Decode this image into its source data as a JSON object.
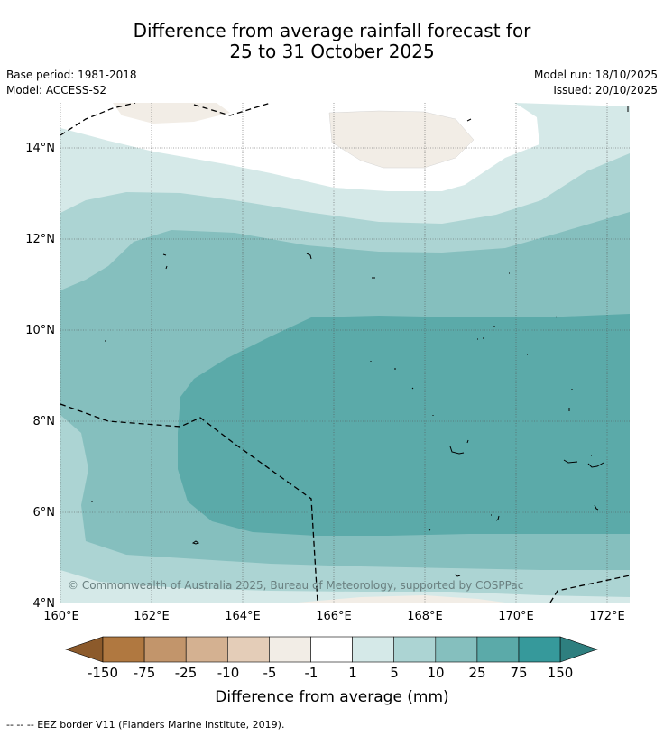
{
  "title": {
    "line1": "Difference from average rainfall forecast for",
    "line2": "25 to 31 October 2025"
  },
  "meta": {
    "base_period": "Base period: 1981-2018",
    "model": "Model: ACCESS-S2",
    "model_run": "Model run: 18/10/2025",
    "issued": "Issued: 20/10/2025"
  },
  "map": {
    "lat_labels": [
      "14°N",
      "12°N",
      "10°N",
      "8°N",
      "6°N",
      "4°N"
    ],
    "lon_labels": [
      "160°E",
      "162°E",
      "164°E",
      "166°E",
      "168°E",
      "170°E",
      "172°E"
    ],
    "copyright": "© Commonwealth of Australia 2025, Bureau of Meteorology, supported by COSPPac"
  },
  "colorbar": {
    "labels": [
      "-150",
      "-75",
      "-25",
      "-10",
      "-5",
      "-1",
      "1",
      "5",
      "10",
      "25",
      "75",
      "150"
    ],
    "colors": [
      "#8c5a2b",
      "#b07840",
      "#c2956b",
      "#d4b191",
      "#e4cdb8",
      "#f2ede6",
      "#ffffff",
      "#d5e9e8",
      "#acd4d3",
      "#85bfbe",
      "#5baaa9",
      "#36999b",
      "#2e7f7f"
    ],
    "label": "Difference from average (mm)"
  },
  "footnote": "--  --  -- EEZ border V11 (Flanders Marine Institute, 2019)."
}
